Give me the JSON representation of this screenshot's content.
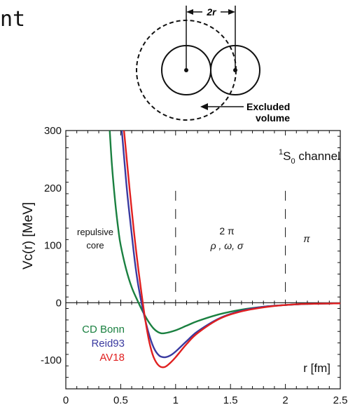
{
  "partial_word": "nt",
  "diagram": {
    "distance_label": "2r",
    "excluded_label_line1": "Excluded",
    "excluded_label_line2": "volume"
  },
  "chart_data": {
    "type": "line",
    "xlabel": "r [fm]",
    "ylabel": "Vc(r) [MeV]",
    "xlim": [
      0,
      2.5
    ],
    "ylim": [
      -150,
      300
    ],
    "xticks": [
      "0",
      "0.5",
      "1",
      "1.5",
      "2",
      "2.5"
    ],
    "yticks": [
      "-100",
      "0",
      "100",
      "200",
      "300"
    ],
    "title": "1S0 channel",
    "title_parts": {
      "sup": "1",
      "main": "S",
      "sub": "0",
      "rest": " channel"
    },
    "region_labels": {
      "core_line1": "repulsive",
      "core_line2": "core",
      "mid_line1": "2 π",
      "mid_line2": "ρ , ω, σ",
      "outer": "π"
    },
    "dividers_x": [
      1,
      2
    ],
    "legend": [
      "CD Bonn",
      "Reid93",
      "AV18"
    ],
    "series": [
      {
        "name": "CD Bonn",
        "color": "#1a8040",
        "x": [
          0.4,
          0.42,
          0.45,
          0.48,
          0.5,
          0.55,
          0.6,
          0.65,
          0.7,
          0.75,
          0.8,
          0.85,
          0.9,
          1.0,
          1.1,
          1.2,
          1.4,
          1.6,
          1.8,
          2.0,
          2.2,
          2.5
        ],
        "y": [
          300,
          240,
          175,
          125,
          100,
          58,
          27,
          5,
          -15,
          -32,
          -45,
          -52,
          -53,
          -48,
          -40,
          -32,
          -20,
          -12,
          -7,
          -4,
          -2,
          -1
        ]
      },
      {
        "name": "Reid93",
        "color": "#3a3aa0",
        "x": [
          0.51,
          0.53,
          0.56,
          0.6,
          0.63,
          0.66,
          0.7,
          0.75,
          0.8,
          0.85,
          0.9,
          0.95,
          1.0,
          1.1,
          1.2,
          1.4,
          1.6,
          1.8,
          2.0,
          2.2,
          2.5
        ],
        "y": [
          300,
          255,
          190,
          120,
          70,
          30,
          -10,
          -50,
          -78,
          -92,
          -95,
          -92,
          -85,
          -67,
          -50,
          -27,
          -14,
          -7,
          -4,
          -2,
          -1
        ]
      },
      {
        "name": "AV18",
        "color": "#e02020",
        "x": [
          0.53,
          0.55,
          0.58,
          0.62,
          0.65,
          0.68,
          0.72,
          0.76,
          0.8,
          0.85,
          0.9,
          0.95,
          1.0,
          1.1,
          1.2,
          1.4,
          1.6,
          1.8,
          2.0,
          2.2,
          2.5
        ],
        "y": [
          300,
          260,
          200,
          125,
          75,
          30,
          -25,
          -68,
          -95,
          -110,
          -112,
          -105,
          -95,
          -72,
          -53,
          -28,
          -15,
          -8,
          -4,
          -2,
          -1
        ]
      }
    ]
  }
}
